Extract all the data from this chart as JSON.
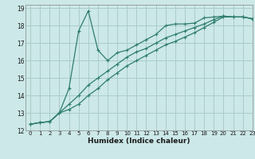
{
  "xlabel": "Humidex (Indice chaleur)",
  "bg_color": "#cce8e8",
  "grid_color": "#aacccc",
  "line_color": "#2e7d6e",
  "xlim": [
    -0.5,
    23
  ],
  "ylim": [
    12,
    19.2
  ],
  "yticks": [
    12,
    13,
    14,
    15,
    16,
    17,
    18,
    19
  ],
  "xticks": [
    0,
    1,
    2,
    3,
    4,
    5,
    6,
    7,
    8,
    9,
    10,
    11,
    12,
    13,
    14,
    15,
    16,
    17,
    18,
    19,
    20,
    21,
    22,
    23
  ],
  "line1_x": [
    0,
    1,
    2,
    3,
    4,
    5,
    6,
    7,
    8,
    9,
    10,
    11,
    12,
    13,
    14,
    15,
    16,
    17,
    18,
    19,
    20,
    21,
    22,
    23
  ],
  "line1_y": [
    12.35,
    12.45,
    12.5,
    13.0,
    14.4,
    17.7,
    18.85,
    16.6,
    16.0,
    16.45,
    16.6,
    16.9,
    17.2,
    17.5,
    18.0,
    18.1,
    18.1,
    18.15,
    18.45,
    18.5,
    18.55,
    18.5,
    18.5,
    18.4
  ],
  "line2_x": [
    0,
    1,
    2,
    3,
    4,
    5,
    6,
    7,
    8,
    9,
    10,
    11,
    12,
    13,
    14,
    15,
    16,
    17,
    18,
    19,
    20,
    21,
    22,
    23
  ],
  "line2_y": [
    12.35,
    12.45,
    12.5,
    13.0,
    13.5,
    14.0,
    14.6,
    15.0,
    15.4,
    15.8,
    16.2,
    16.5,
    16.7,
    17.0,
    17.3,
    17.5,
    17.7,
    17.9,
    18.1,
    18.35,
    18.55,
    18.5,
    18.5,
    18.4
  ],
  "line3_x": [
    0,
    1,
    2,
    3,
    4,
    5,
    6,
    7,
    8,
    9,
    10,
    11,
    12,
    13,
    14,
    15,
    16,
    17,
    18,
    19,
    20,
    21,
    22,
    23
  ],
  "line3_y": [
    12.35,
    12.45,
    12.5,
    13.0,
    13.2,
    13.5,
    14.0,
    14.4,
    14.9,
    15.3,
    15.7,
    16.0,
    16.3,
    16.6,
    16.9,
    17.1,
    17.35,
    17.6,
    17.9,
    18.2,
    18.5,
    18.5,
    18.5,
    18.4
  ]
}
